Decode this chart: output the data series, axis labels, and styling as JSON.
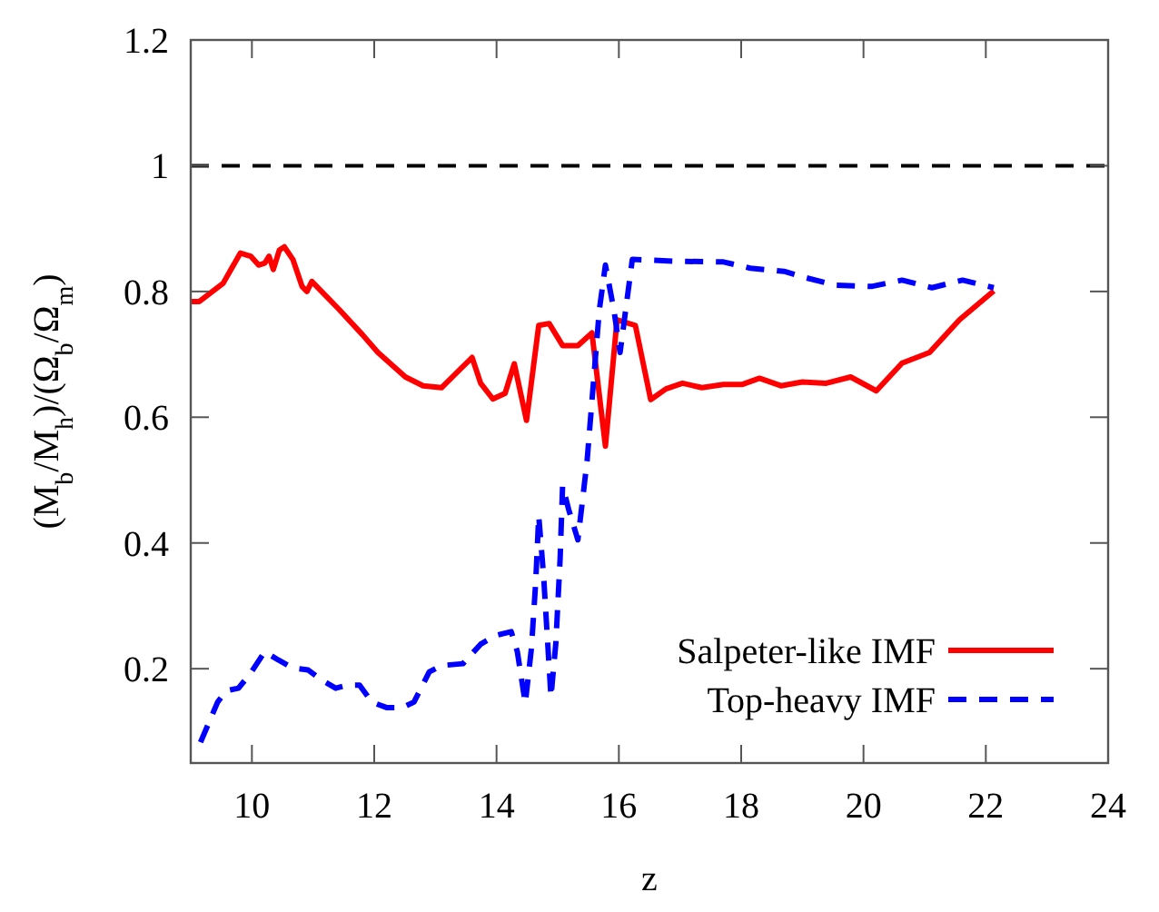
{
  "chart_data": {
    "type": "line",
    "xlabel": "z",
    "ylabel": "(M$_{b}$/M$_{h}$)/(Ω$_{b}$/Ω$_{m}$)",
    "xlim": [
      9,
      24
    ],
    "xticks": [
      10,
      12,
      14,
      16,
      18,
      20,
      22,
      24
    ],
    "ylim": [
      0.05,
      1.2
    ],
    "yticks": [
      0.2,
      0.4,
      0.6,
      0.8,
      1,
      1.2
    ],
    "grid": false,
    "legend": "bottom right",
    "marker": "none",
    "ref_lines": [
      {
        "axis": "y",
        "value": 1,
        "color": "#000000",
        "line_style": "dashed"
      }
    ],
    "series": [
      {
        "name": "Salpeter-like IMF",
        "color": "#ff0000",
        "line_style": "solid",
        "x": [
          9.0,
          9.14,
          9.53,
          9.81,
          9.98,
          10.11,
          10.21,
          10.28,
          10.35,
          10.45,
          10.53,
          10.67,
          10.82,
          10.9,
          10.98,
          11.42,
          11.81,
          12.06,
          12.51,
          12.8,
          13.1,
          13.6,
          13.74,
          13.94,
          14.14,
          14.29,
          14.49,
          14.69,
          14.86,
          15.08,
          15.33,
          15.56,
          15.78,
          15.97,
          16.27,
          16.52,
          16.77,
          17.04,
          17.36,
          17.71,
          18.01,
          18.3,
          18.65,
          19.0,
          19.39,
          19.79,
          20.21,
          20.63,
          21.08,
          21.57,
          22.13
        ],
        "values": [
          0.784,
          0.784,
          0.813,
          0.861,
          0.856,
          0.842,
          0.845,
          0.856,
          0.835,
          0.866,
          0.871,
          0.851,
          0.808,
          0.8,
          0.816,
          0.772,
          0.731,
          0.703,
          0.664,
          0.65,
          0.647,
          0.695,
          0.654,
          0.629,
          0.638,
          0.685,
          0.595,
          0.746,
          0.749,
          0.714,
          0.714,
          0.734,
          0.554,
          0.755,
          0.746,
          0.628,
          0.645,
          0.654,
          0.647,
          0.652,
          0.652,
          0.662,
          0.65,
          0.656,
          0.654,
          0.664,
          0.642,
          0.686,
          0.703,
          0.755,
          0.801
        ]
      },
      {
        "name": "Top-heavy IMF",
        "color": "#0000ff",
        "line_style": "dashed",
        "x": [
          9.16,
          9.44,
          9.58,
          9.78,
          9.98,
          10.21,
          10.43,
          10.67,
          10.92,
          11.14,
          11.37,
          11.57,
          11.76,
          11.96,
          12.21,
          12.46,
          12.65,
          12.9,
          13.1,
          13.45,
          13.74,
          13.99,
          14.24,
          14.34,
          14.47,
          14.57,
          14.64,
          14.69,
          14.77,
          14.89,
          14.97,
          15.04,
          15.08,
          15.18,
          15.33,
          15.48,
          15.68,
          15.78,
          15.92,
          16.02,
          16.22,
          16.96,
          17.71,
          18.15,
          18.7,
          19.05,
          19.54,
          20.13,
          20.63,
          21.12,
          21.62,
          22.13
        ],
        "values": [
          0.083,
          0.147,
          0.165,
          0.169,
          0.193,
          0.227,
          0.214,
          0.201,
          0.198,
          0.182,
          0.169,
          0.174,
          0.174,
          0.147,
          0.138,
          0.138,
          0.147,
          0.195,
          0.205,
          0.208,
          0.239,
          0.253,
          0.259,
          0.227,
          0.145,
          0.232,
          0.337,
          0.443,
          0.347,
          0.155,
          0.241,
          0.376,
          0.491,
          0.453,
          0.405,
          0.53,
          0.77,
          0.842,
          0.77,
          0.703,
          0.851,
          0.848,
          0.847,
          0.837,
          0.832,
          0.822,
          0.81,
          0.808,
          0.818,
          0.806,
          0.818,
          0.806
        ]
      }
    ]
  }
}
